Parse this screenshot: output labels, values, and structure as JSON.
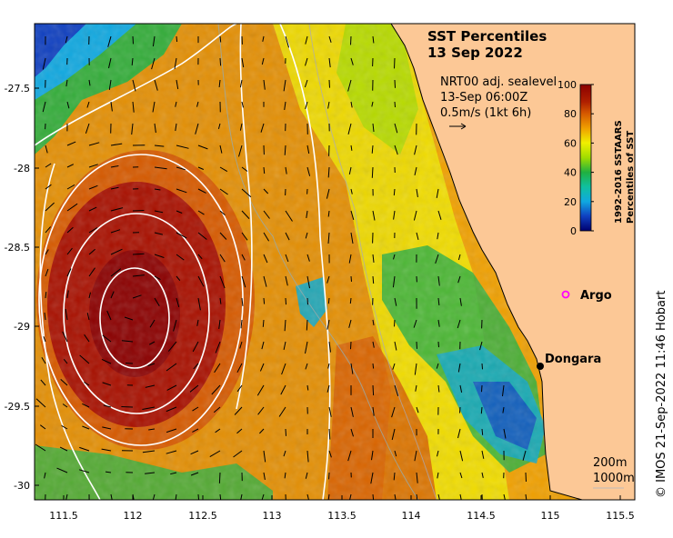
{
  "map": {
    "title_line1": "SST Percentiles",
    "title_line2": "13 Sep 2022",
    "info_line1": "NRT00 adj. sealevel",
    "info_line2": "13-Sep 06:00Z",
    "info_line3": "0.5m/s (1kt 6h)",
    "colorbar": {
      "label_line1": "1992-2016 SSTAARS",
      "label_line2": "Percentiles of SST",
      "ticks": [
        "100",
        "80",
        "60",
        "40",
        "20",
        "0"
      ],
      "colors": [
        "#8b0000",
        "#d65a00",
        "#f0a000",
        "#f0f000",
        "#a0dc00",
        "#20b040",
        "#10a8c8",
        "#1040c0",
        "#000070"
      ]
    },
    "x_ticks": [
      "111.5",
      "112",
      "112.5",
      "113",
      "113.5",
      "114",
      "114.5",
      "115",
      "115.5"
    ],
    "y_ticks": [
      "-27.5",
      "-28",
      "-28.5",
      "-29",
      "-29.5",
      "-30"
    ],
    "places": {
      "argo": "Argo",
      "dongara": "Dongara"
    },
    "depth_labels": {
      "shallow": "200m",
      "deep": "1000m"
    },
    "credit": "© IMOS 21-Sep-2022 11:46 Hobart",
    "colors": {
      "land": "#fcc896",
      "argo_marker": "#ff00ff"
    }
  }
}
